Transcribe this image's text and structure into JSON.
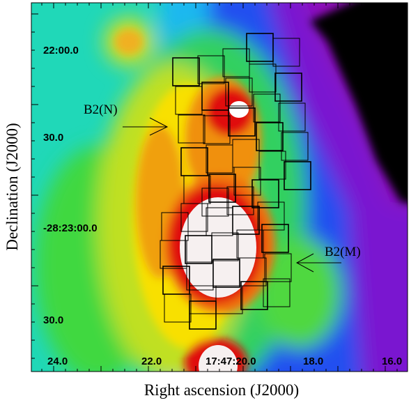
{
  "figure": {
    "xlabel": "Right ascension (J2000)",
    "ylabel": "Declination (J2000)",
    "y_ticks": [
      "22:00.0",
      "30.0",
      "-28:23:00.0",
      "30.0"
    ],
    "x_ticks": [
      "24.0",
      "22.0",
      "17:47:20.0",
      "18.0",
      "16.0"
    ],
    "annotations": [
      "B2(N)",
      "B2(M)"
    ],
    "colormap": [
      "#000000",
      "#8a10c8",
      "#1030f0",
      "#10c8e0",
      "#10d040",
      "#f0e000",
      "#f08000",
      "#e00000",
      "#ffffff"
    ]
  }
}
